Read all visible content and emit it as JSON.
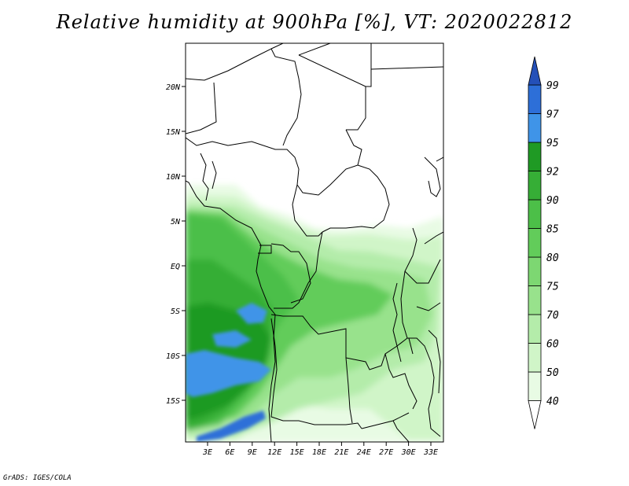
{
  "title": "Relative humidity at 900hPa [%], VT: 2020022812",
  "credit": "GrADS: IGES/COLA",
  "map": {
    "lat_labels": [
      "20N",
      "15N",
      "10N",
      "5N",
      "EQ",
      "5S",
      "10S",
      "15S"
    ],
    "lon_labels": [
      "3E",
      "6E",
      "9E",
      "12E",
      "15E",
      "18E",
      "21E",
      "24E",
      "27E",
      "30E",
      "33E"
    ],
    "colors": {
      "lt40": "#ffffff",
      "40-50": "#e8fbe4",
      "50-60": "#d0f5c8",
      "60-70": "#b4ecaa",
      "70-75": "#98e28c",
      "75-80": "#7dd772",
      "80-85": "#62cc5a",
      "85-90": "#4cbf48",
      "90-92": "#36ae36",
      "92-95": "#1f9a24",
      "95-97": "#3f94e8",
      "97-99": "#2d6fd8",
      "gt99": "#2450b8"
    }
  },
  "colorbar": {
    "levels": [
      "40",
      "50",
      "60",
      "70",
      "75",
      "80",
      "85",
      "90",
      "92",
      "95",
      "97",
      "99"
    ],
    "colors": [
      "#e8fbe4",
      "#d0f5c8",
      "#b4ecaa",
      "#98e28c",
      "#7dd772",
      "#62cc5a",
      "#4cbf48",
      "#36ae36",
      "#1f9a24",
      "#3f94e8",
      "#2d6fd8"
    ],
    "top_color": "#2450b8",
    "bottom_color": "#ffffff"
  }
}
